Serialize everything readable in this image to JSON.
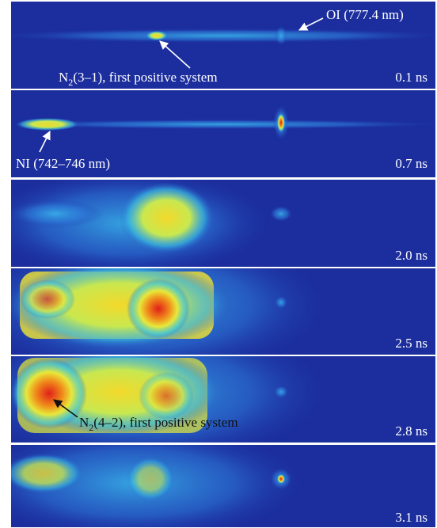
{
  "panels": [
    {
      "time": "0.1 ns",
      "annotations": [
        {
          "text": "OI (777.4 nm)"
        },
        {
          "prefix": "N",
          "subscript": "2",
          "suffix": "(3–1), first positive system"
        }
      ]
    },
    {
      "time": "0.7 ns",
      "annotations": [
        {
          "text": "NI (742–746 nm)"
        }
      ]
    },
    {
      "time": "2.0 ns",
      "annotations": []
    },
    {
      "time": "2.5 ns",
      "annotations": []
    },
    {
      "time": "2.8 ns",
      "annotations": [
        {
          "prefix": "N",
          "subscript": "2",
          "suffix": "(4–2), first positive system"
        }
      ]
    },
    {
      "time": "3.1 ns",
      "annotations": []
    }
  ]
}
